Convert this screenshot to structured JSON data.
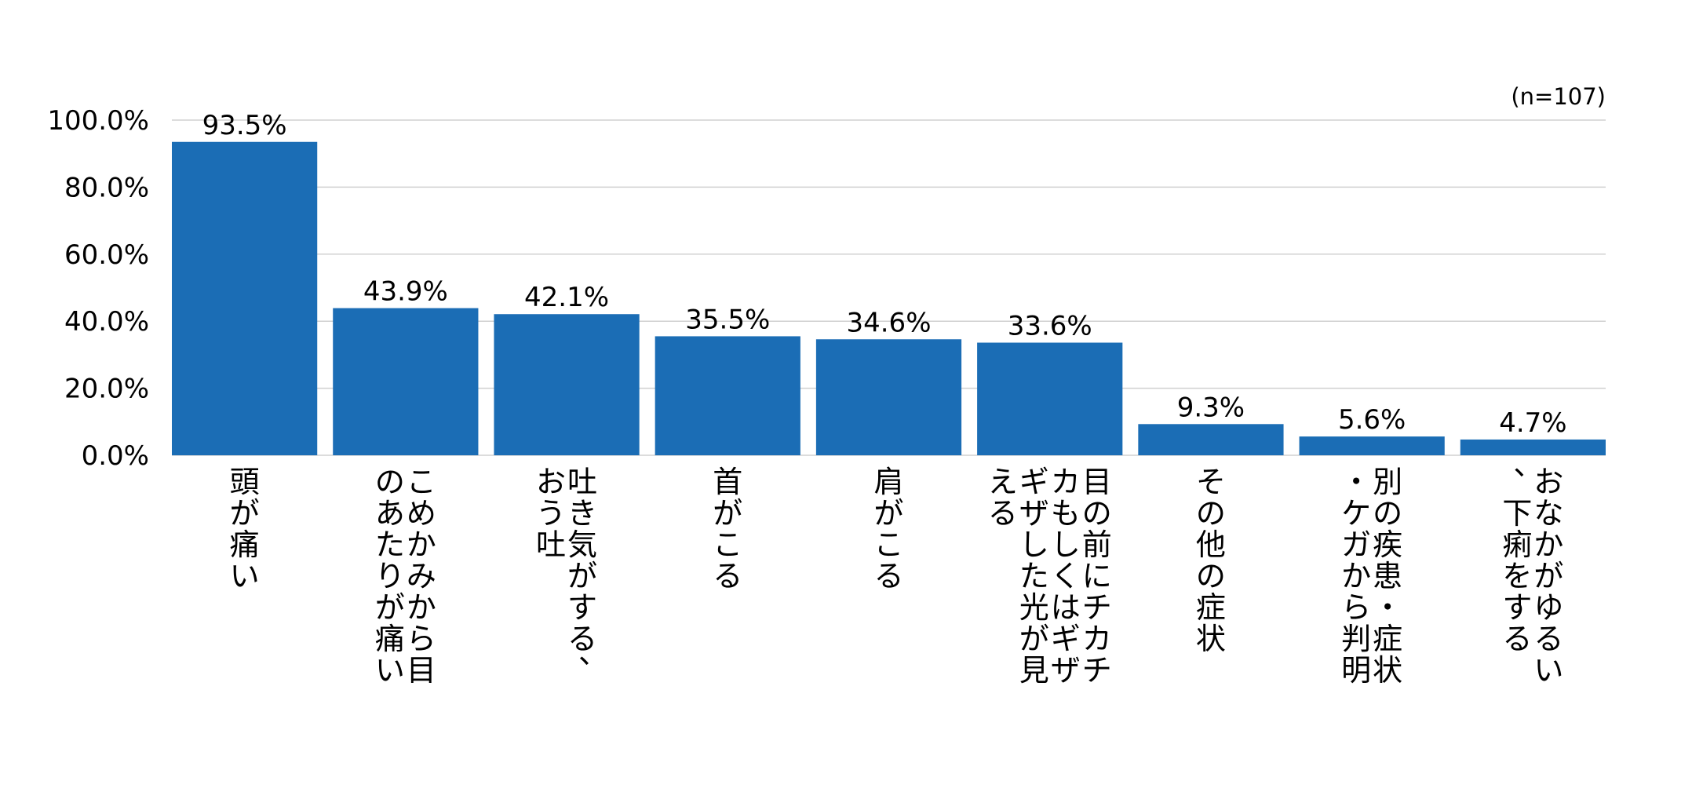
{
  "chart_data": {
    "type": "bar",
    "title": "",
    "xlabel": "",
    "ylabel": "",
    "note": "(n=107)",
    "ylim": [
      0,
      100
    ],
    "yticks": [
      0,
      20,
      40,
      60,
      80,
      100
    ],
    "ytick_labels": [
      "0.0%",
      "20.0%",
      "40.0%",
      "60.0%",
      "80.0%",
      "100.0%"
    ],
    "grid": true,
    "bar_color": "#1B6DB5",
    "categories": [
      "頭が痛い",
      "こめかみから目のあたりが痛い",
      "吐き気がする、おう吐",
      "首がこる",
      "肩がこる",
      "目の前にチカチカもしくはギザギザした光が見える",
      "その他の症状",
      "別の疾患・症状・ケガから判明",
      "おなかがゆるい、下痢をする"
    ],
    "values": [
      93.5,
      43.9,
      42.1,
      35.5,
      34.6,
      33.6,
      9.3,
      5.6,
      4.7
    ],
    "value_labels": [
      "93.5%",
      "43.9%",
      "42.1%",
      "35.5%",
      "34.6%",
      "33.6%",
      "9.3%",
      "5.6%",
      "4.7%"
    ]
  }
}
